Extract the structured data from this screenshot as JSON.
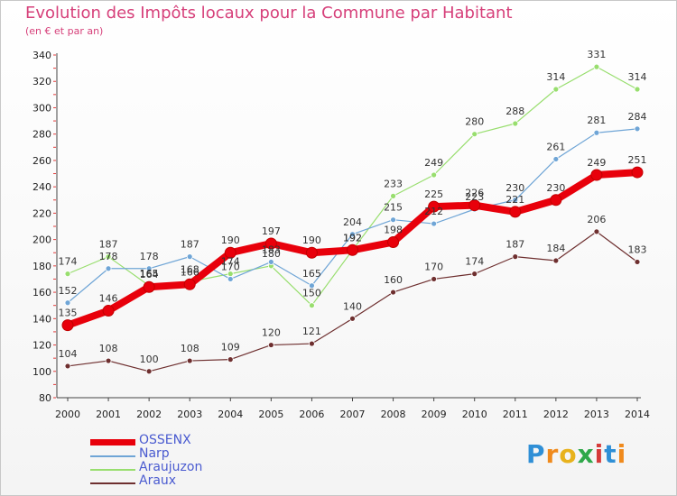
{
  "title": "Evolution des Impôts locaux pour la Commune par Habitant",
  "subtitle": "(en € et par an)",
  "logo": {
    "text": "Proxiti",
    "letters": [
      "P",
      "r",
      "o",
      "x",
      "i",
      "t",
      "i"
    ],
    "colors": [
      "#2f8fd6",
      "#f08a1c",
      "#e8b21c",
      "#2fa84a",
      "#d63a3a",
      "#2f8fd6",
      "#f08a1c"
    ]
  },
  "chart_data": {
    "type": "line",
    "title": "Evolution des Impôts locaux pour la Commune par Habitant",
    "subtitle": "(en € et par an)",
    "x": [
      2000,
      2001,
      2002,
      2003,
      2004,
      2005,
      2006,
      2007,
      2008,
      2009,
      2010,
      2011,
      2012,
      2013,
      2014
    ],
    "ylim": [
      80,
      340
    ],
    "yticks": [
      80,
      100,
      120,
      140,
      160,
      180,
      200,
      220,
      240,
      260,
      280,
      300,
      320,
      340
    ],
    "grid": false,
    "legend_position": "bottom-left",
    "series": [
      {
        "name": "OSSENX",
        "color": "#e8000b",
        "values": [
          135,
          146,
          164,
          166,
          190,
          197,
          190,
          192,
          198,
          225,
          226,
          221,
          230,
          249,
          251
        ]
      },
      {
        "name": "Narp",
        "color": "#6fa5d6",
        "values": [
          152,
          178,
          178,
          187,
          170,
          183,
          165,
          204,
          215,
          212,
          223,
          230,
          261,
          281,
          284
        ]
      },
      {
        "name": "Araujuzon",
        "color": "#98de6e",
        "values": [
          174,
          187,
          165,
          168,
          174,
          180,
          150,
          192,
          233,
          249,
          280,
          288,
          314,
          331,
          314
        ]
      },
      {
        "name": "Araux",
        "color": "#6e2f2f",
        "values": [
          104,
          108,
          100,
          108,
          109,
          120,
          121,
          140,
          160,
          170,
          174,
          187,
          184,
          206,
          183
        ]
      }
    ]
  }
}
